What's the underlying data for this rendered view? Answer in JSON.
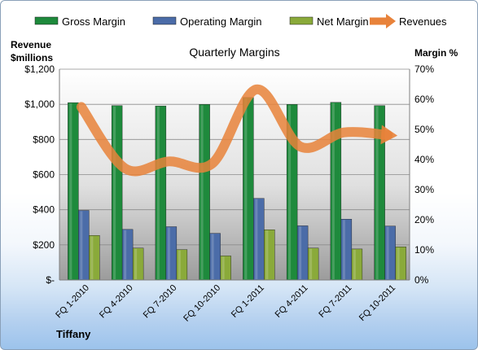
{
  "chart_data": {
    "type": "bar",
    "title": "Quarterly Margins",
    "company_label": "Tiffany",
    "left_axis_label": [
      "Revenue",
      "$millions"
    ],
    "right_axis_label": "Margin %",
    "categories": [
      "FQ 1-2010",
      "FQ 4-2010",
      "FQ 7-2010",
      "FQ 10-2010",
      "FQ 1-2011",
      "FQ 4-2011",
      "FQ 7-2011",
      "FQ 10-2011"
    ],
    "left_ticks": [
      "$-",
      "$200",
      "$400",
      "$600",
      "$800",
      "$1,000",
      "$1,200"
    ],
    "right_ticks": [
      "0%",
      "10%",
      "20%",
      "30%",
      "40%",
      "50%",
      "60%",
      "70%"
    ],
    "ylim_left": [
      0,
      1200
    ],
    "ylim_right": [
      0,
      70
    ],
    "series": [
      {
        "name": "Gross Margin",
        "axis": "right",
        "type": "bar",
        "color": "#1e8a3c",
        "values": [
          58.9,
          57.9,
          57.8,
          58.3,
          60.6,
          58.3,
          59.0,
          57.9
        ]
      },
      {
        "name": "Operating Margin",
        "axis": "right",
        "type": "bar",
        "color": "#4b6ca8",
        "values": [
          23.1,
          16.8,
          17.7,
          15.5,
          27.1,
          18.0,
          20.2,
          17.9
        ]
      },
      {
        "name": "Net Margin",
        "axis": "right",
        "type": "bar",
        "color": "#8aaa3a",
        "values": [
          14.8,
          10.6,
          10.1,
          8.0,
          16.7,
          10.6,
          10.3,
          11.0
        ]
      },
      {
        "name": "Revenues",
        "axis": "left",
        "type": "line",
        "color": "#e8823a",
        "values": [
          985,
          635,
          675,
          665,
          1085,
          760,
          840,
          825
        ]
      }
    ],
    "legend_position": "top",
    "grid": true
  }
}
